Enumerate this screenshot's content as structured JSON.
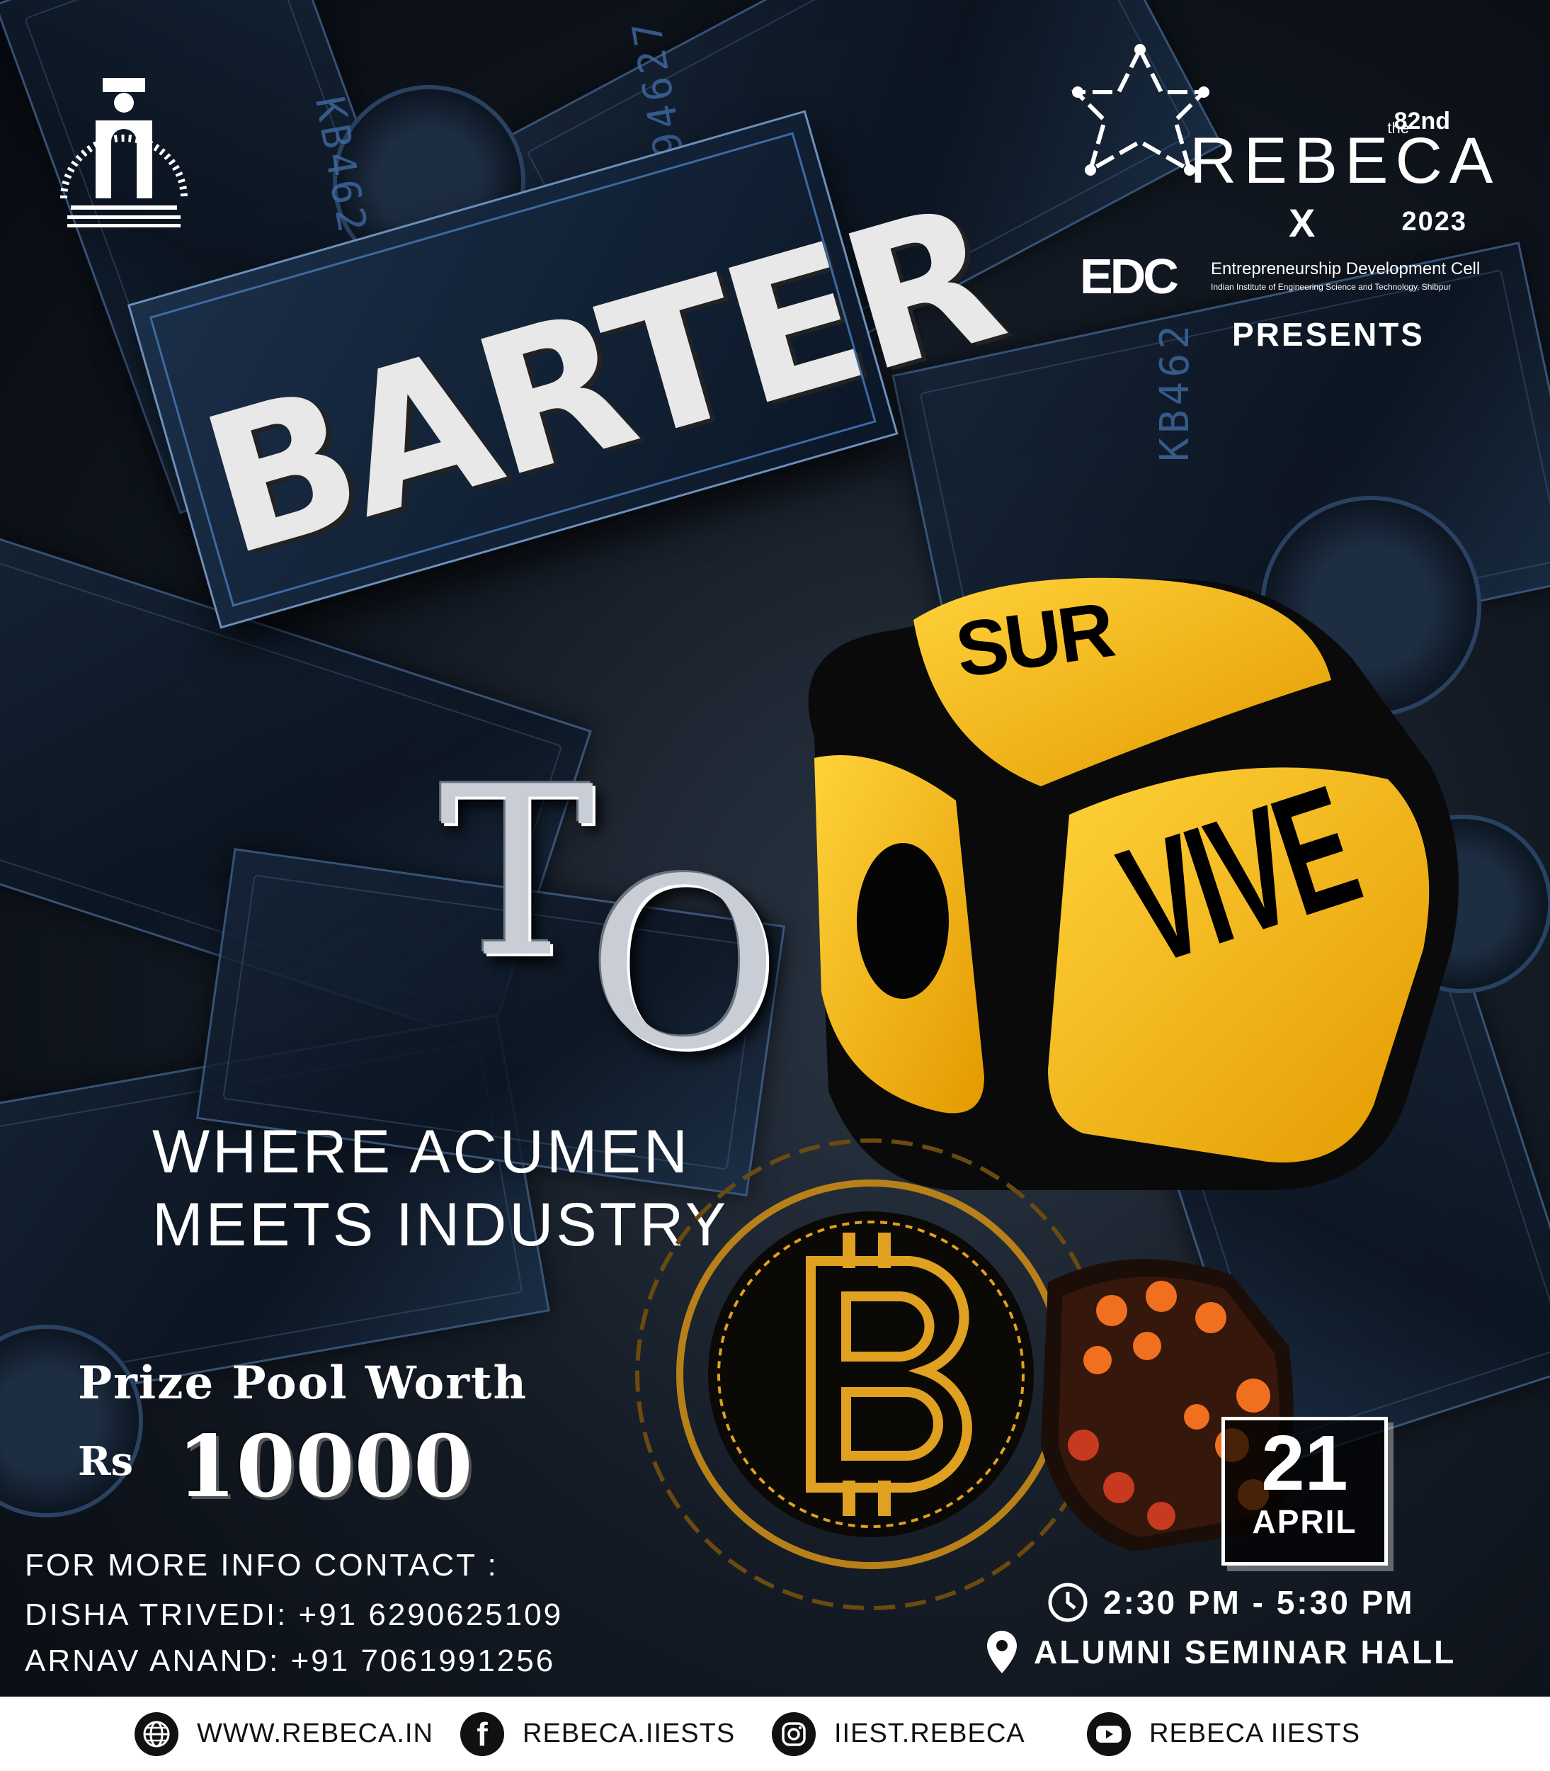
{
  "header": {
    "rebeca": {
      "the": "the",
      "edition": "82nd",
      "word": "REBECA",
      "year": "2023"
    },
    "collab": "X",
    "edc": {
      "mark": "EDC",
      "name": "Entrepreneurship Development Cell",
      "institute": "Indian Institute of Engineering Science and Technology, Shibpur"
    },
    "presents": "PRESENTS"
  },
  "title": {
    "barter": "BARTER",
    "to_t": "T",
    "to_o": "O",
    "sur": "SUR",
    "vive": "VIVE"
  },
  "tagline": {
    "line1": "WHERE ACUMEN",
    "line2": "MEETS INDUSTRY"
  },
  "prize": {
    "title": "Prize Pool Worth",
    "currency": "Rs",
    "amount": "10000"
  },
  "date": {
    "day": "21",
    "month": "APRIL"
  },
  "contact": {
    "heading": "FOR MORE INFO CONTACT :",
    "people": [
      {
        "line": "DISHA TRIVEDI: +91 6290625109"
      },
      {
        "line": "ARNAV ANAND: +91 7061991256"
      }
    ]
  },
  "event": {
    "time": "2:30 PM - 5:30 PM",
    "venue": "ALUMNI SEMINAR HALL"
  },
  "footer": [
    {
      "icon": "globe-icon",
      "text": "WWW.REBECA.IN"
    },
    {
      "icon": "facebook-icon",
      "text": "REBECA.IIESTS"
    },
    {
      "icon": "instagram-icon",
      "text": "IIEST.REBECA"
    },
    {
      "icon": "youtube-icon",
      "text": "REBECA IIESTS"
    }
  ],
  "colors": {
    "dice_yellow": "#f5b400",
    "bill_blue": "#3d6aa3",
    "bitcoin_gold": "#e0a020"
  }
}
